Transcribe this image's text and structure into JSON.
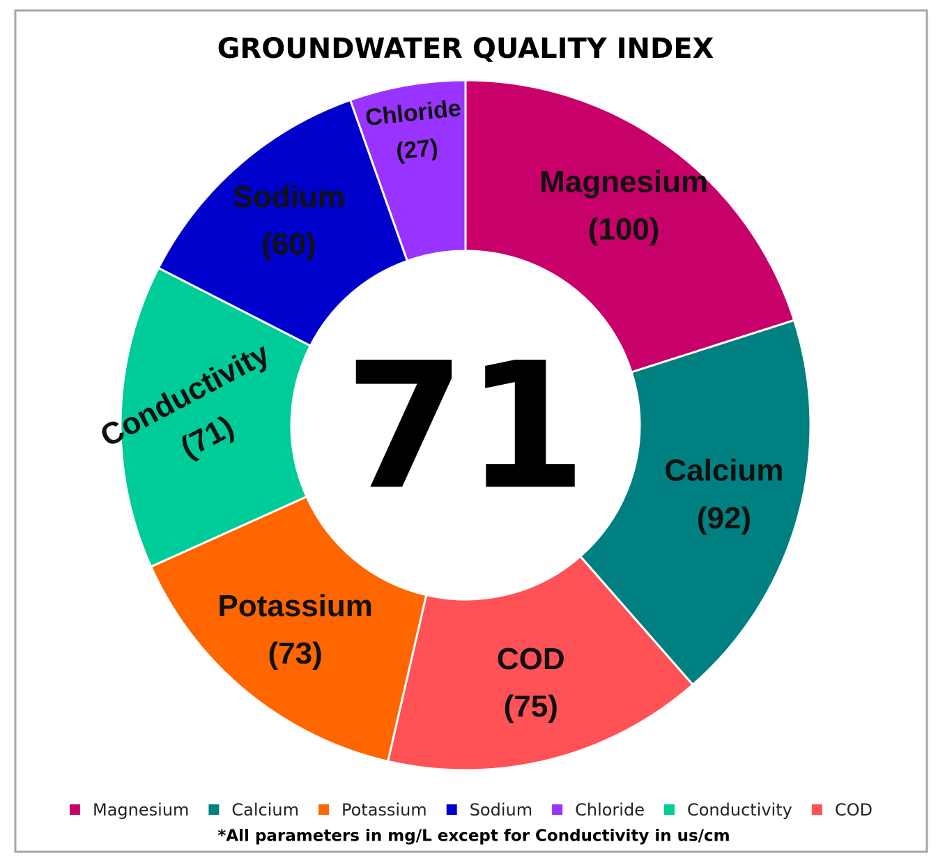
{
  "chart_data": {
    "type": "donut",
    "title": "GROUNDWATER QUALITY INDEX",
    "center_label": "71",
    "categories": [
      "Magnesium",
      "Calcium",
      "COD",
      "Potassium",
      "Conductivity",
      "Sodium",
      "Chloride"
    ],
    "values": [
      100,
      92,
      75,
      73,
      71,
      60,
      27
    ],
    "value_labels": [
      "(100)",
      "(92)",
      "(75)",
      "(73)",
      "(71)",
      "(60)",
      "(27)"
    ],
    "colors": [
      "#c8006a",
      "#008080",
      "#ff5257",
      "#ff6600",
      "#00cc99",
      "#0000cc",
      "#9933ff"
    ],
    "legend": [
      "Magnesium",
      "Calcium",
      "Potassium",
      "Sodium",
      "Chloride",
      "Conductivity",
      "COD"
    ],
    "legend_position": "bottom",
    "note": "*All parameters in mg/L except for Conductivity in us/cm"
  }
}
